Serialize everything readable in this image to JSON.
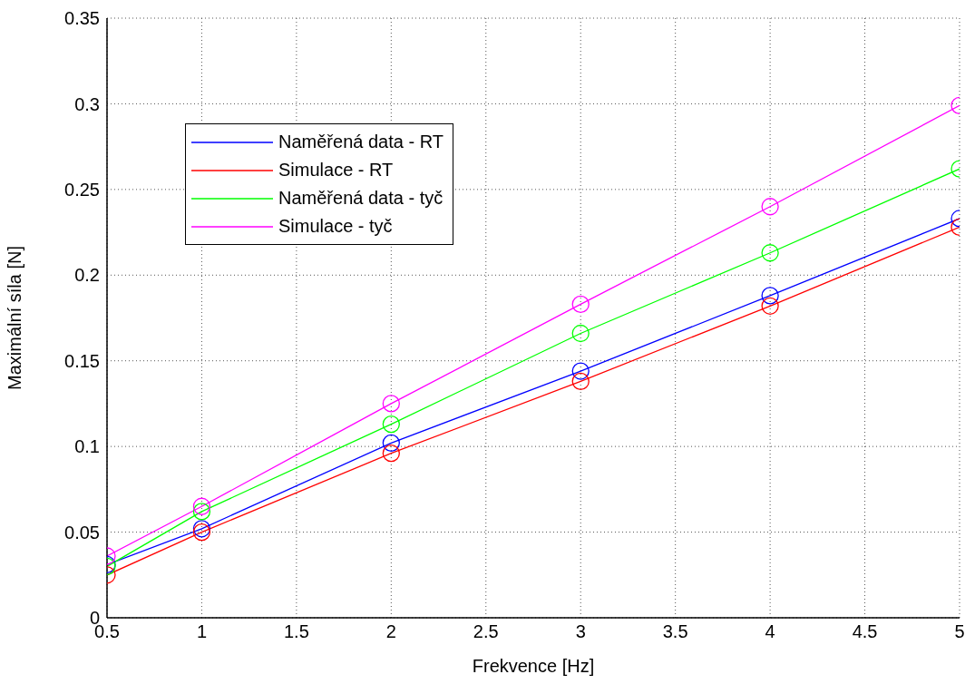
{
  "chart_data": {
    "type": "line",
    "xlabel": "Frekvence [Hz]",
    "ylabel": "Maximální síla [N]",
    "x": [
      0.5,
      1,
      2,
      3,
      4,
      5
    ],
    "series": [
      {
        "name": "Naměřená data - RT",
        "color": "#0000ff",
        "values": [
          0.031,
          0.052,
          0.102,
          0.144,
          0.188,
          0.233
        ]
      },
      {
        "name": "Simulace - RT",
        "color": "#ff0000",
        "values": [
          0.025,
          0.05,
          0.096,
          0.138,
          0.182,
          0.228
        ]
      },
      {
        "name": "Naměřená data - tyč",
        "color": "#00ff00",
        "values": [
          0.03,
          0.062,
          0.113,
          0.166,
          0.213,
          0.262
        ]
      },
      {
        "name": "Simulace - tyč",
        "color": "#ff00ff",
        "values": [
          0.036,
          0.065,
          0.125,
          0.183,
          0.24,
          0.299
        ]
      }
    ],
    "xlim": [
      0.5,
      5
    ],
    "xticks": [
      0.5,
      1,
      1.5,
      2,
      2.5,
      3,
      3.5,
      4,
      4.5,
      5
    ],
    "ylim": [
      0,
      0.35
    ],
    "yticks": [
      0,
      0.05,
      0.1,
      0.15,
      0.2,
      0.25,
      0.3,
      0.35
    ],
    "grid": true,
    "legend": "top left",
    "marker": "circle",
    "line_style": "solid"
  }
}
